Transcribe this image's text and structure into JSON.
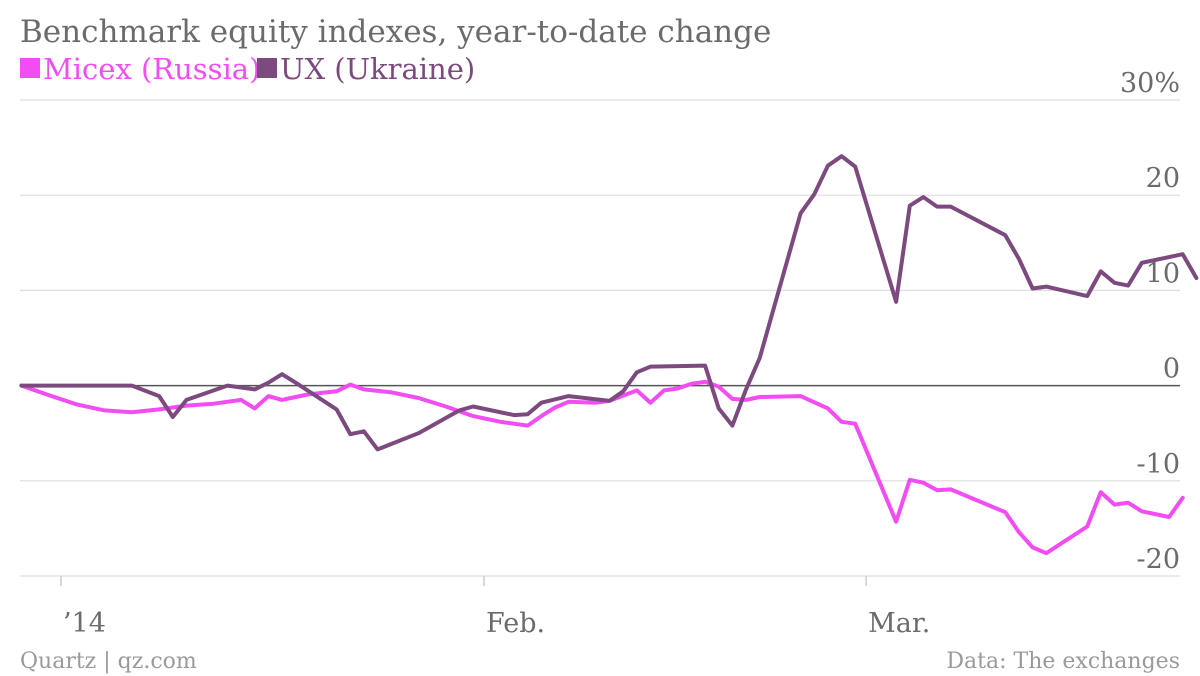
{
  "chart_data": {
    "type": "line",
    "title": "Benchmark equity indexes, year-to-date change",
    "xlabel": "",
    "ylabel": "",
    "ylim": [
      -20,
      30
    ],
    "y_ticks": [
      30,
      20,
      10,
      0,
      -10,
      -20
    ],
    "y_tick_labels": [
      "30%",
      "20",
      "10",
      "0",
      "-10",
      "-20"
    ],
    "x_tick_labels": [
      {
        "label": "’14",
        "day": 0
      },
      {
        "label": "Feb.",
        "day": 31
      },
      {
        "label": "Mar.",
        "day": 59
      }
    ],
    "xlim": [
      -3,
      82
    ],
    "grid": true,
    "legend_position": "top-left",
    "series": [
      {
        "name": "Micex (Russia)",
        "color": "#f24df2",
        "points": [
          [
            -2.9,
            0
          ],
          [
            -0.9,
            -1
          ],
          [
            1.2,
            -2
          ],
          [
            3.2,
            -2.6
          ],
          [
            5.2,
            -2.8
          ],
          [
            7.2,
            -2.5
          ],
          [
            9.2,
            -2.1
          ],
          [
            11.2,
            -1.9
          ],
          [
            13.2,
            -1.5
          ],
          [
            14.2,
            -2.4
          ],
          [
            15.2,
            -1.1
          ],
          [
            16.2,
            -1.5
          ],
          [
            17.2,
            -1.2
          ],
          [
            18.2,
            -0.9
          ],
          [
            20.2,
            -0.6
          ],
          [
            21.2,
            0.1
          ],
          [
            22.2,
            -0.4
          ],
          [
            24.2,
            -0.7
          ],
          [
            26.2,
            -1.3
          ],
          [
            28.2,
            -2.2
          ],
          [
            30.2,
            -3.2
          ],
          [
            32.2,
            -3.8
          ],
          [
            34.2,
            -4.2
          ],
          [
            35.2,
            -3.2
          ],
          [
            36.2,
            -2.3
          ],
          [
            37.2,
            -1.7
          ],
          [
            39.2,
            -1.8
          ],
          [
            40.2,
            -1.6
          ],
          [
            42.2,
            -0.5
          ],
          [
            43.2,
            -1.8
          ],
          [
            44.2,
            -0.5
          ],
          [
            45.2,
            -0.3
          ],
          [
            46.2,
            0.2
          ],
          [
            47.2,
            0.4
          ],
          [
            48.2,
            -0.1
          ],
          [
            49.2,
            -1.4
          ],
          [
            50.2,
            -1.5
          ],
          [
            51.2,
            -1.2
          ],
          [
            54.2,
            -1.1
          ],
          [
            56.2,
            -2.4
          ],
          [
            57.2,
            -3.8
          ],
          [
            58.2,
            -4
          ],
          [
            61.2,
            -14.3
          ],
          [
            62.2,
            -9.9
          ],
          [
            63.2,
            -10.2
          ],
          [
            64.2,
            -11
          ],
          [
            65.2,
            -10.9
          ],
          [
            69.2,
            -13.3
          ],
          [
            70.2,
            -15.4
          ],
          [
            71.2,
            -17
          ],
          [
            72.2,
            -17.6
          ],
          [
            75.2,
            -14.8
          ],
          [
            76.2,
            -11.2
          ],
          [
            77.2,
            -12.5
          ],
          [
            78.2,
            -12.3
          ],
          [
            79.2,
            -13.2
          ],
          [
            81.2,
            -13.8
          ],
          [
            82.2,
            -11.8
          ]
        ]
      },
      {
        "name": "UX (Ukraine)",
        "color": "#7c4a7e",
        "points": [
          [
            -2.9,
            0
          ],
          [
            5.2,
            0
          ],
          [
            7.2,
            -1.1
          ],
          [
            8.2,
            -3.3
          ],
          [
            9.2,
            -1.5
          ],
          [
            12.2,
            0
          ],
          [
            14.2,
            -0.4
          ],
          [
            15.2,
            0.3
          ],
          [
            16.2,
            1.2
          ],
          [
            17.2,
            0.3
          ],
          [
            20.2,
            -2.5
          ],
          [
            21.2,
            -5.1
          ],
          [
            22.2,
            -4.8
          ],
          [
            23.2,
            -6.7
          ],
          [
            26.2,
            -5
          ],
          [
            29.2,
            -2.6
          ],
          [
            30.2,
            -2.2
          ],
          [
            33.2,
            -3.1
          ],
          [
            34.2,
            -3
          ],
          [
            35.2,
            -1.8
          ],
          [
            37.2,
            -1.1
          ],
          [
            40.2,
            -1.6
          ],
          [
            41.2,
            -0.6
          ],
          [
            42.2,
            1.4
          ],
          [
            43.2,
            2
          ],
          [
            47.2,
            2.1
          ],
          [
            48.2,
            -2.4
          ],
          [
            49.2,
            -4.2
          ],
          [
            50.2,
            -0.4
          ],
          [
            51.2,
            2.9
          ],
          [
            54.2,
            18.1
          ],
          [
            55.2,
            20.1
          ],
          [
            56.2,
            23.1
          ],
          [
            57.2,
            24.1
          ],
          [
            58.2,
            23
          ],
          [
            61.2,
            8.8
          ],
          [
            62.2,
            18.9
          ],
          [
            63.2,
            19.8
          ],
          [
            64.2,
            18.8
          ],
          [
            65.2,
            18.8
          ],
          [
            69.2,
            15.8
          ],
          [
            70.2,
            13.3
          ],
          [
            71.2,
            10.2
          ],
          [
            72.2,
            10.4
          ],
          [
            75.2,
            9.4
          ],
          [
            76.2,
            12
          ],
          [
            77.2,
            10.8
          ],
          [
            78.2,
            10.5
          ],
          [
            79.2,
            12.9
          ],
          [
            82.2,
            13.8
          ],
          [
            83.2,
            11.3
          ]
        ]
      }
    ]
  },
  "footer": {
    "source_left": "Quartz | qz.com",
    "source_right": "Data: The exchanges"
  }
}
